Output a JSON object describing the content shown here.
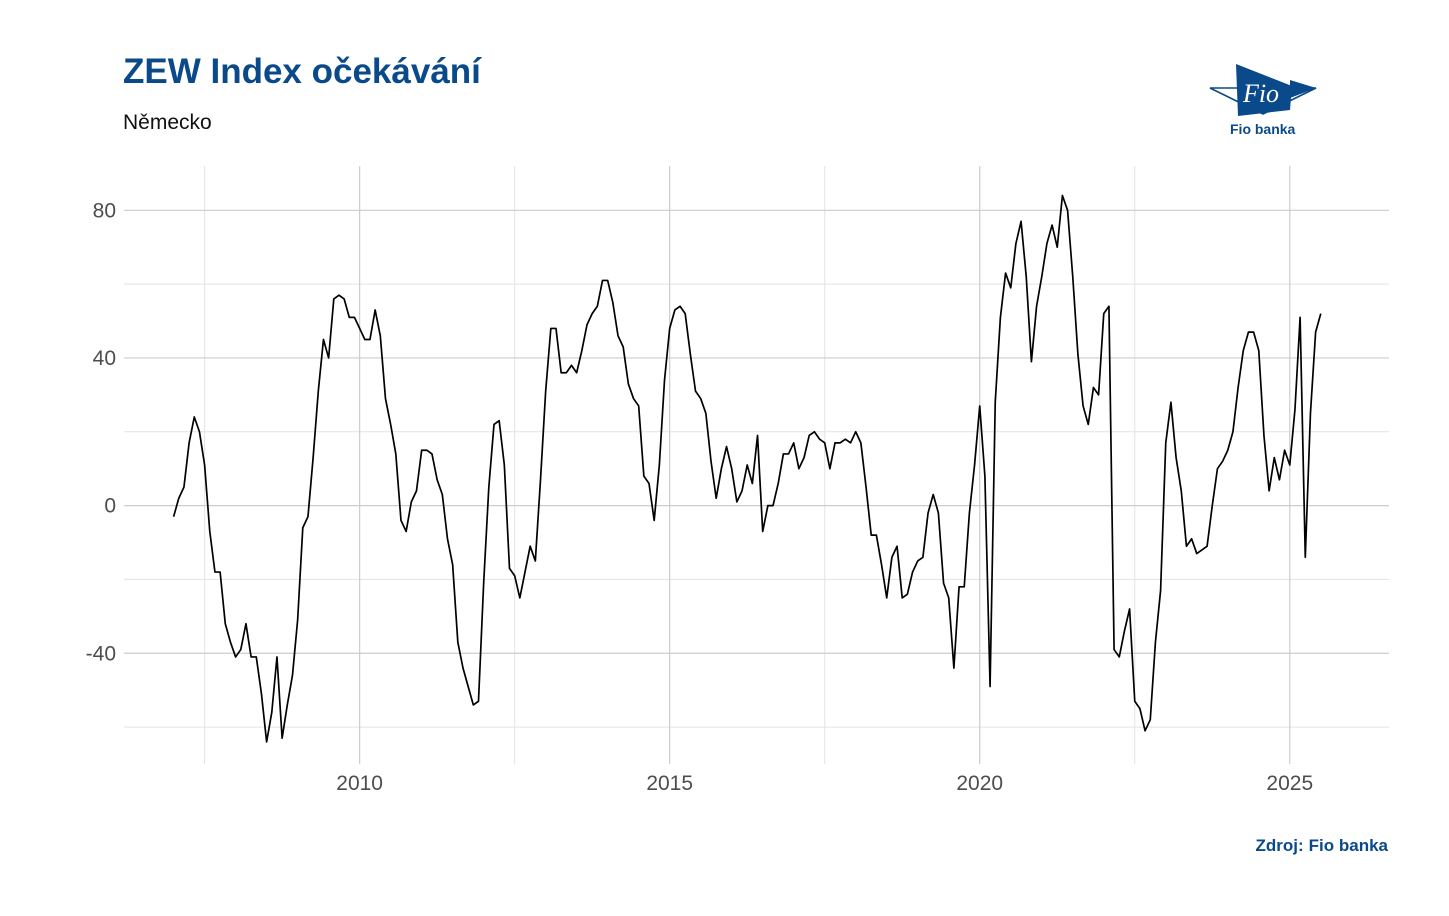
{
  "header": {
    "title": "ZEW Index očekávání",
    "subtitle": "Německo"
  },
  "logo": {
    "mark_text": "Fio",
    "caption": "Fio banka",
    "color": "#0a4a8a"
  },
  "footer": {
    "source_label": "Zdroj:",
    "source_value": "Fio banka"
  },
  "chart_data": {
    "type": "line",
    "title": "ZEW Index očekávání",
    "subtitle": "Německo",
    "xlabel": "",
    "ylabel": "",
    "xlim": [
      2006.2,
      2026.6
    ],
    "ylim": [
      -70,
      92
    ],
    "x_ticks": [
      2010,
      2015,
      2020,
      2025
    ],
    "y_ticks": [
      -40,
      0,
      40,
      80
    ],
    "grid": true,
    "legend": "none",
    "line_color": "#000000",
    "series": [
      {
        "x_start": 2007.0,
        "x_step": 0.083333,
        "values": [
          -3,
          2,
          5,
          17,
          24,
          20,
          11,
          -7,
          -18,
          -18,
          -32,
          -37,
          -41,
          -39,
          -32,
          -41,
          -41,
          -51,
          -64,
          -56,
          -41,
          -63,
          -54,
          -46,
          -31,
          -6,
          -3,
          13,
          31,
          45,
          40,
          56,
          57,
          56,
          51,
          51,
          48,
          45,
          45,
          53,
          46,
          29,
          22,
          14,
          -4,
          -7,
          1,
          4,
          15,
          15,
          14,
          7,
          3,
          -9,
          -16,
          -37,
          -44,
          -49,
          -54,
          -53,
          -21,
          5,
          22,
          23,
          11,
          -17,
          -19,
          -25,
          -18,
          -11,
          -15,
          7,
          31,
          48,
          48,
          36,
          36,
          38,
          36,
          42,
          49,
          52,
          54,
          61,
          61,
          55,
          46,
          43,
          33,
          29,
          27,
          8,
          6,
          -4,
          11,
          34,
          48,
          53,
          54,
          52,
          41,
          31,
          29,
          25,
          12,
          2,
          10,
          16,
          10,
          1,
          4,
          11,
          6,
          19,
          -7,
          0,
          0,
          6,
          14,
          14,
          17,
          10,
          13,
          19,
          20,
          18,
          17,
          10,
          17,
          17,
          18,
          17,
          20,
          17,
          5,
          -8,
          -8,
          -16,
          -25,
          -14,
          -11,
          -25,
          -24,
          -18,
          -15,
          -14,
          -2,
          3,
          -2,
          -21,
          -25,
          -44,
          -22,
          -22,
          -2,
          11,
          27,
          8,
          -49,
          28,
          51,
          63,
          59,
          71,
          77,
          62,
          39,
          54,
          62,
          71,
          76,
          70,
          84,
          80,
          62,
          41,
          27,
          22,
          32,
          30,
          52,
          54,
          -39,
          -41,
          -34,
          -28,
          -53,
          -55,
          -61,
          -58,
          -37,
          -23,
          17,
          28,
          13,
          4,
          -11,
          -9,
          -13,
          -12,
          -11,
          0,
          10,
          12,
          15,
          20,
          32,
          42,
          47,
          47,
          42,
          19,
          4,
          13,
          7,
          15,
          11,
          26,
          51,
          -14,
          25,
          47,
          52
        ]
      }
    ]
  }
}
